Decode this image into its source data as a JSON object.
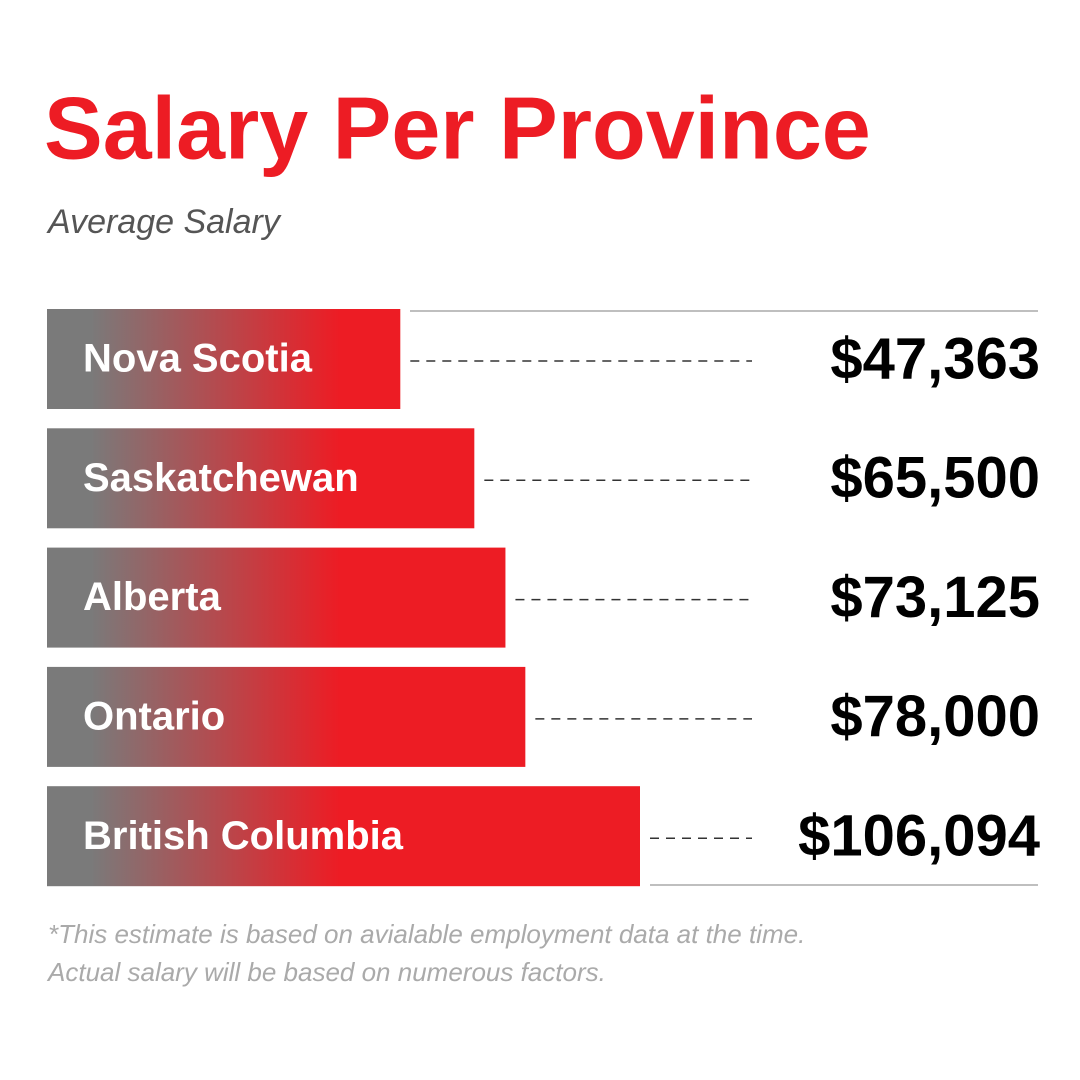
{
  "chart_data": {
    "type": "bar",
    "title": "Salary Per Province",
    "subtitle": "Average Salary",
    "categories": [
      "Nova Scotia",
      "Saskatchewan",
      "Alberta",
      "Ontario",
      "British Columbia"
    ],
    "values": [
      47363,
      65500,
      73125,
      78000,
      106094
    ],
    "value_labels": [
      "$47,363",
      "$65,500",
      "$73,125",
      "$78,000",
      "$106,094"
    ],
    "color": "#ed1c24",
    "annotations": [
      "*This estimate is based on avialable employment data at the time.",
      "Actual salary will be based on numerous factors."
    ]
  }
}
